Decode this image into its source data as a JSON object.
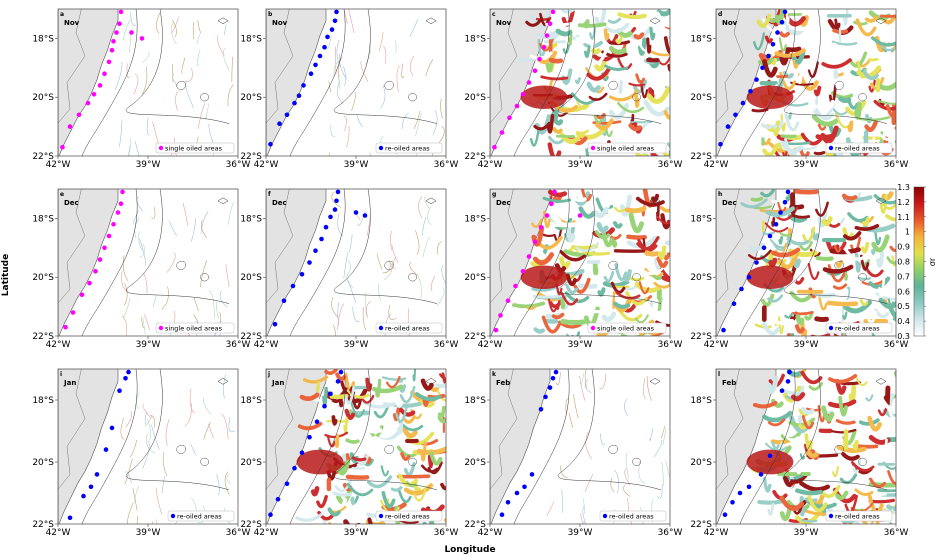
{
  "figure": {
    "ylabel": "Latitude",
    "xlabel": "Longitude",
    "colorbar": {
      "label": "σr",
      "ticks": [
        "1.3",
        "1.2",
        "1.1",
        "1",
        "0.9",
        "0.8",
        "0.7",
        "0.6",
        "0.5",
        "0.4",
        "0.3"
      ],
      "range": [
        0.3,
        1.3
      ],
      "colors": [
        "#ffffff",
        "#cfe7ea",
        "#8ec9c2",
        "#5fb39a",
        "#8fcf6a",
        "#e2e04a",
        "#f4b33a",
        "#e8572a",
        "#c8181a",
        "#8b0000"
      ]
    },
    "x_ticks": [
      "42°W",
      "39°W",
      "36°W"
    ],
    "y_ticks": [
      "18°S",
      "20°S",
      "22°S"
    ],
    "land_color": "#e3e3e3",
    "panels": [
      {
        "letter": "a",
        "month": "Nov",
        "legend": "single oiled areas",
        "marker_color": "#ff00ff",
        "field": false
      },
      {
        "letter": "b",
        "month": "Nov",
        "legend": "re-oiled areas",
        "marker_color": "#0000ff",
        "field": false
      },
      {
        "letter": "c",
        "month": "Nov",
        "legend": "single oiled areas",
        "marker_color": "#ff00ff",
        "field": true
      },
      {
        "letter": "d",
        "month": "Nov",
        "legend": "re-oiled areas",
        "marker_color": "#0000ff",
        "field": true
      },
      {
        "letter": "e",
        "month": "Dec",
        "legend": "single oiled areas",
        "marker_color": "#ff00ff",
        "field": false
      },
      {
        "letter": "f",
        "month": "Dec",
        "legend": "re-oiled areas",
        "marker_color": "#0000ff",
        "field": false
      },
      {
        "letter": "g",
        "month": "Dec",
        "legend": "single oiled areas",
        "marker_color": "#ff00ff",
        "field": true
      },
      {
        "letter": "h",
        "month": "Dec",
        "legend": "re-oiled areas",
        "marker_color": "#0000ff",
        "field": true
      },
      {
        "letter": "i",
        "month": "Jan",
        "legend": "re-oiled areas",
        "marker_color": "#0000ff",
        "field": false
      },
      {
        "letter": "j",
        "month": "Jan",
        "legend": "re-oiled areas",
        "marker_color": "#0000ff",
        "field": true
      },
      {
        "letter": "k",
        "month": "Feb",
        "legend": "re-oiled areas",
        "marker_color": "#0000ff",
        "field": false
      },
      {
        "letter": "l",
        "month": "Feb",
        "legend": "re-oiled areas",
        "marker_color": "#0000ff",
        "field": true
      }
    ]
  },
  "chart_data": {
    "type": "scatter",
    "xlabel": "Longitude",
    "ylabel": "Latitude",
    "xlim": [
      -42,
      -36
    ],
    "ylim": [
      -22,
      -17
    ],
    "series": [
      {
        "name": "single oiled areas",
        "panel": "a",
        "lon": [
          -39.9,
          -39.95,
          -40.05,
          -40.15,
          -40.2,
          -40.3,
          -40.45,
          -40.6,
          -40.8,
          -41.0,
          -41.3,
          -41.6,
          -41.85,
          -39.55,
          -39.2
        ],
        "lat": [
          -17.1,
          -17.5,
          -17.8,
          -18.1,
          -18.4,
          -18.8,
          -19.2,
          -19.6,
          -19.9,
          -20.2,
          -20.6,
          -21.0,
          -21.7,
          -17.8,
          -18.0
        ]
      },
      {
        "name": "re-oiled areas",
        "panel": "b",
        "lon": [
          -39.65,
          -39.7,
          -39.8,
          -39.95,
          -40.05,
          -40.2,
          -40.35,
          -40.5,
          -40.75,
          -40.9,
          -41.05,
          -41.3,
          -41.55,
          -41.85
        ],
        "lat": [
          -17.1,
          -17.4,
          -17.7,
          -17.95,
          -18.3,
          -18.6,
          -18.9,
          -19.2,
          -19.6,
          -19.95,
          -20.2,
          -20.6,
          -20.9,
          -21.6
        ]
      },
      {
        "name": "single oiled areas",
        "panel": "c",
        "lon": [
          -39.9,
          -40.0,
          -40.1,
          -40.2,
          -40.35,
          -40.5,
          -40.7,
          -40.9,
          -41.1,
          -41.35,
          -41.6,
          -41.85
        ],
        "lat": [
          -17.1,
          -17.5,
          -17.9,
          -18.3,
          -18.7,
          -19.1,
          -19.5,
          -19.9,
          -20.3,
          -20.7,
          -21.2,
          -21.7
        ]
      },
      {
        "name": "re-oiled areas",
        "panel": "d",
        "lon": [
          -39.7,
          -39.8,
          -39.95,
          -40.1,
          -40.25,
          -40.45,
          -40.65,
          -40.85,
          -41.1,
          -41.35,
          -41.6,
          -41.85
        ],
        "lat": [
          -17.1,
          -17.45,
          -17.8,
          -18.2,
          -18.6,
          -19.0,
          -19.4,
          -19.8,
          -20.2,
          -20.6,
          -21.0,
          -21.6
        ]
      },
      {
        "name": "single oiled areas",
        "panel": "e",
        "lon": [
          -39.85,
          -39.9,
          -40.0,
          -40.15,
          -40.3,
          -40.45,
          -40.6,
          -40.75,
          -40.95,
          -41.2,
          -41.5,
          -41.75
        ],
        "lat": [
          -17.1,
          -17.5,
          -17.8,
          -18.2,
          -18.6,
          -19.0,
          -19.4,
          -19.8,
          -20.2,
          -20.6,
          -21.2,
          -21.7
        ]
      },
      {
        "name": "re-oiled areas",
        "panel": "f",
        "lon": [
          -39.6,
          -39.65,
          -39.7,
          -39.85,
          -40.0,
          -40.15,
          -40.35,
          -40.55,
          -40.8,
          -41.1,
          -41.4,
          -41.7,
          -39.0,
          -38.7
        ],
        "lat": [
          -17.1,
          -17.4,
          -17.7,
          -17.95,
          -18.3,
          -18.7,
          -19.1,
          -19.5,
          -19.9,
          -20.3,
          -20.8,
          -21.6,
          -17.8,
          -17.9
        ]
      },
      {
        "name": "single oiled areas",
        "panel": "g",
        "lon": [
          -39.85,
          -39.95,
          -40.1,
          -40.3,
          -40.5,
          -40.7,
          -40.9,
          -41.15,
          -41.4,
          -41.65,
          -41.8,
          -39.0
        ],
        "lat": [
          -17.1,
          -17.5,
          -17.9,
          -18.3,
          -18.8,
          -19.3,
          -19.8,
          -20.3,
          -20.8,
          -21.3,
          -21.8,
          -17.9
        ]
      },
      {
        "name": "re-oiled areas",
        "panel": "h",
        "lon": [
          -39.6,
          -39.7,
          -39.85,
          -40.0,
          -40.2,
          -40.4,
          -40.65,
          -40.9,
          -41.15,
          -41.4,
          -41.75
        ],
        "lat": [
          -17.1,
          -17.45,
          -17.8,
          -18.2,
          -18.6,
          -19.0,
          -19.5,
          -20.0,
          -20.4,
          -20.9,
          -21.8
        ]
      },
      {
        "name": "re-oiled areas",
        "panel": "i",
        "lon": [
          -39.65,
          -39.75,
          -39.95,
          -40.2,
          -40.4,
          -40.7,
          -40.9,
          -41.15,
          -41.6
        ],
        "lat": [
          -17.1,
          -17.3,
          -17.7,
          -18.9,
          -19.6,
          -20.4,
          -20.8,
          -21.1,
          -21.8
        ]
      },
      {
        "name": "re-oiled areas",
        "panel": "j",
        "lon": [
          -39.5,
          -39.6,
          -39.85,
          -40.05,
          -40.3,
          -40.55,
          -40.8,
          -41.05,
          -41.3,
          -41.6,
          -41.85
        ],
        "lat": [
          -17.1,
          -17.4,
          -17.8,
          -18.2,
          -18.7,
          -19.2,
          -19.7,
          -20.2,
          -20.7,
          -21.2,
          -21.7
        ]
      },
      {
        "name": "re-oiled areas",
        "panel": "k",
        "lon": [
          -39.8,
          -39.9,
          -40.0,
          -40.15,
          -40.3,
          -40.6,
          -40.85,
          -41.1,
          -41.4,
          -41.6
        ],
        "lat": [
          -17.1,
          -17.3,
          -17.6,
          -17.9,
          -18.3,
          -20.4,
          -20.8,
          -21.0,
          -21.3,
          -21.7
        ]
      },
      {
        "name": "re-oiled areas",
        "panel": "l",
        "lon": [
          -39.55,
          -39.6,
          -39.8,
          -40.2,
          -40.5,
          -40.9,
          -41.2,
          -41.45,
          -41.7
        ],
        "lat": [
          -17.1,
          -17.4,
          -17.7,
          -19.8,
          -20.4,
          -20.8,
          -21.0,
          -21.3,
          -21.7
        ]
      }
    ]
  }
}
